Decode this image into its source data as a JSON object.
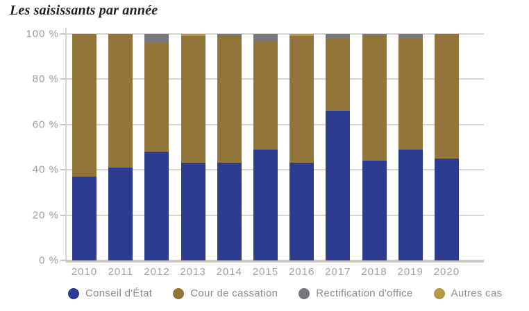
{
  "title": "Les saisissants par année",
  "chart_data": {
    "type": "bar",
    "stacked": true,
    "percent_stacked": true,
    "title": "Les saisissants par année",
    "xlabel": "",
    "ylabel": "",
    "ylim": [
      0,
      100
    ],
    "grid": true,
    "legend_position": "bottom",
    "y_ticks": [
      {
        "value": 100,
        "label": "100 %"
      },
      {
        "value": 80,
        "label": "80 %"
      },
      {
        "value": 60,
        "label": "60 %"
      },
      {
        "value": 40,
        "label": "40 %"
      },
      {
        "value": 20,
        "label": "20 %"
      },
      {
        "value": 0,
        "label": "0 %"
      }
    ],
    "categories": [
      "2010",
      "2011",
      "2012",
      "2013",
      "2014",
      "2015",
      "2016",
      "2017",
      "2018",
      "2019",
      "2020"
    ],
    "series": [
      {
        "name": "Conseil d'État",
        "color": "#2c3b90",
        "values": [
          37,
          41,
          48,
          43,
          43,
          49,
          43,
          66,
          44,
          49,
          45
        ]
      },
      {
        "name": "Cour de cassation",
        "color": "#927539",
        "values": [
          63,
          59,
          48,
          56,
          56,
          48,
          56,
          32,
          55,
          49,
          55
        ]
      },
      {
        "name": "Rectification d'office",
        "color": "#77787b",
        "values": [
          0,
          0,
          4,
          0,
          1,
          3,
          0,
          2,
          1,
          2,
          0
        ]
      },
      {
        "name": "Autres cas",
        "color": "#b49b45",
        "values": [
          0,
          0,
          0,
          1,
          0,
          0,
          1,
          0,
          0,
          0,
          0
        ]
      }
    ]
  },
  "colors": {
    "gridline": "#d9d5cf",
    "baseline": "#ccc8c1",
    "axis_label": "#9f9d98",
    "legend_text": "#8a8c8e",
    "title_text": "#231f1c"
  }
}
